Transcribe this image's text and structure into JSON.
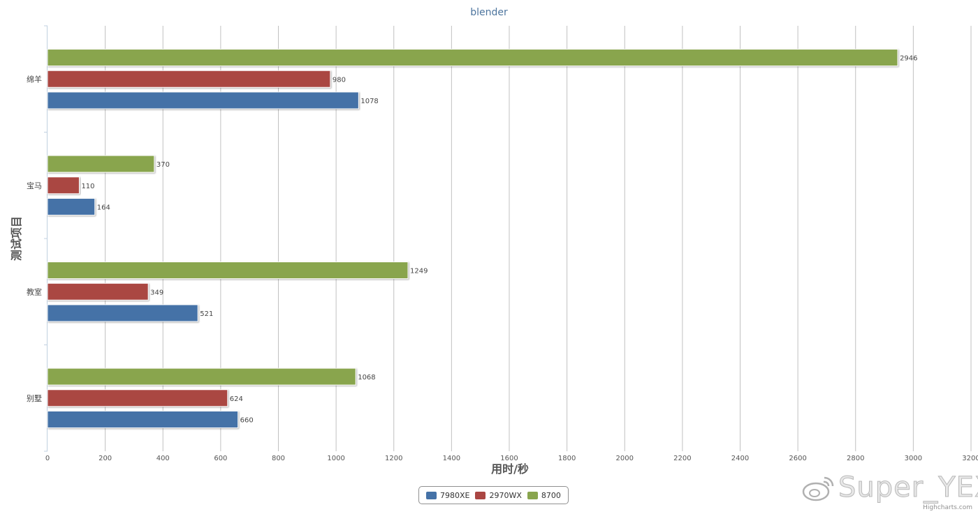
{
  "chart_data": {
    "type": "bar",
    "orientation": "horizontal",
    "title": "blender",
    "xlabel": "用时/秒",
    "ylabel": "测试项目",
    "categories": [
      "绵羊",
      "宝马",
      "教室",
      "别墅"
    ],
    "xlim": [
      0,
      3200
    ],
    "xticks": [
      0,
      200,
      400,
      600,
      800,
      1000,
      1200,
      1400,
      1600,
      1800,
      2000,
      2200,
      2400,
      2600,
      2800,
      3000,
      3200
    ],
    "grid": true,
    "legend_position": "bottom-center",
    "series": [
      {
        "name": "7980XE",
        "color": "#4572a7",
        "values": [
          1078,
          164,
          521,
          660
        ]
      },
      {
        "name": "2970WX",
        "color": "#aa4643",
        "values": [
          980,
          110,
          349,
          624
        ]
      },
      {
        "name": "8700",
        "color": "#89a54e",
        "values": [
          2946,
          370,
          1249,
          1068
        ]
      }
    ]
  },
  "watermark": {
    "text": "Super_YEX"
  },
  "credits": "Highcharts.com"
}
